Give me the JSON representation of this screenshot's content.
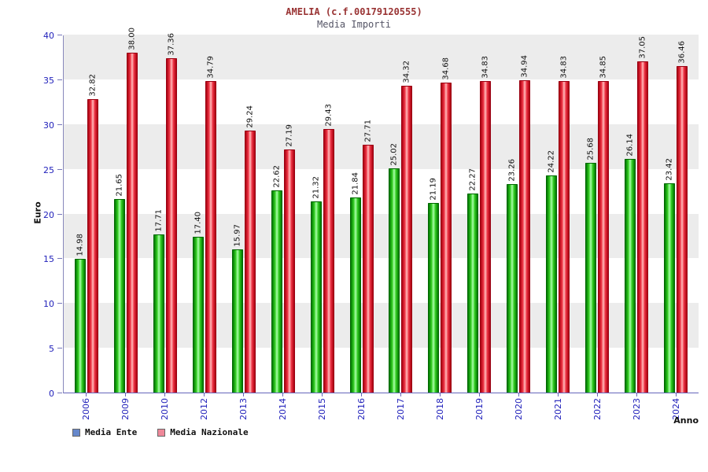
{
  "title": "AMELIA (c.f.00179120555)",
  "subtitle": "Media Importi",
  "chart_data": {
    "type": "bar",
    "title": "AMELIA (c.f.00179120555)",
    "subtitle": "Media Importi",
    "xlabel": "Anno",
    "ylabel": "Euro",
    "ylim": [
      0,
      40
    ],
    "yticks": [
      0,
      5,
      10,
      15,
      20,
      25,
      30,
      35,
      40
    ],
    "grid": "alternating horizontal bands",
    "legend_position": "bottom-left",
    "categories": [
      "2006",
      "2009",
      "2010",
      "2012",
      "2013",
      "2014",
      "2015",
      "2016",
      "2017",
      "2018",
      "2019",
      "2020",
      "2021",
      "2022",
      "2023",
      "2024"
    ],
    "series": [
      {
        "name": "Media Ente",
        "bar_color": "#22bb22",
        "legend_swatch_color": "#6688cc",
        "values": [
          14.98,
          21.65,
          17.71,
          17.4,
          15.97,
          22.62,
          21.32,
          21.84,
          25.02,
          21.19,
          22.27,
          23.26,
          24.22,
          25.68,
          26.14,
          23.42
        ]
      },
      {
        "name": "Media Nazionale",
        "bar_color": "#ee2233",
        "legend_swatch_color": "#ee8899",
        "values": [
          32.82,
          38.0,
          37.36,
          34.79,
          29.24,
          27.19,
          29.43,
          27.71,
          34.32,
          34.68,
          34.83,
          34.94,
          34.83,
          34.85,
          37.05,
          36.46
        ]
      }
    ]
  },
  "colors": {
    "title": "#993333",
    "subtitle": "#555566",
    "axis_text": "#2222bb",
    "band_gray": "#ececec",
    "bar_green": "#22bb22",
    "bar_red": "#ee2233"
  }
}
